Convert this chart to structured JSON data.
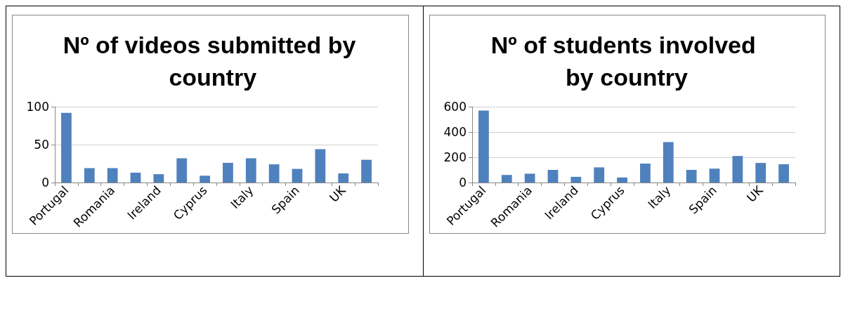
{
  "chart_data": [
    {
      "type": "bar",
      "title": "Nº of videos submitted by country",
      "categories": [
        "Portugal",
        null,
        "Romania",
        null,
        "Ireland",
        null,
        "Cyprus",
        null,
        "Italy",
        null,
        "Spain",
        null,
        "UK",
        null
      ],
      "series": [
        {
          "color": "#4f81bd",
          "values": [
            92,
            19,
            19,
            13,
            11,
            32,
            9,
            26,
            32,
            24,
            18,
            44,
            12,
            30
          ]
        }
      ],
      "ylim": [
        0,
        100
      ],
      "yticks": [
        0,
        50,
        100
      ],
      "grid": "y"
    },
    {
      "type": "bar",
      "title": "Nº of students involved by country",
      "categories": [
        "Portugal",
        null,
        "Romania",
        null,
        "Ireland",
        null,
        "Cyprus",
        null,
        "Italy",
        null,
        "Spain",
        null,
        "UK",
        null
      ],
      "series": [
        {
          "color": "#4f81bd",
          "values": [
            570,
            60,
            70,
            100,
            45,
            120,
            40,
            150,
            320,
            100,
            110,
            210,
            155,
            145
          ]
        }
      ],
      "ylim": [
        0,
        600
      ],
      "yticks": [
        0,
        200,
        400,
        600
      ],
      "grid": "y"
    }
  ]
}
